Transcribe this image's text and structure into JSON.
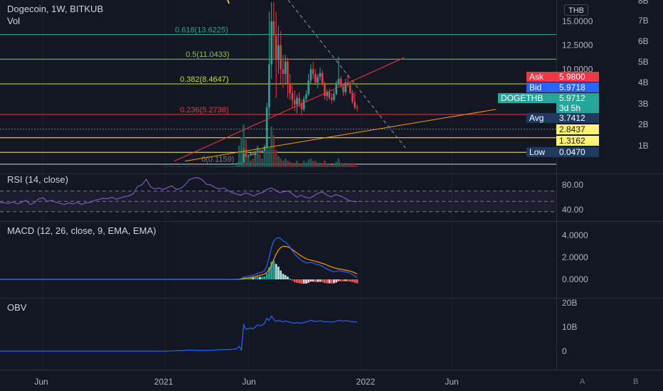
{
  "header": {
    "symbol": "Dogecoin, 1W, BITKUB",
    "volume_label": "Vol",
    "currency_button": "THB"
  },
  "indicators": {
    "rsi": {
      "label": "RSI (14, close)",
      "ticks": [
        "80.00",
        "40.00"
      ]
    },
    "macd": {
      "label": "MACD (12, 26, close, 9, EMA, EMA)",
      "ticks": [
        "4.0000",
        "2.0000",
        "0.0000"
      ]
    },
    "obv": {
      "label": "OBV",
      "ticks": [
        "20B",
        "10B",
        "0"
      ]
    }
  },
  "price_axis": {
    "ticks": [
      "15.0000",
      "12.5000",
      "10.0000"
    ],
    "volume_ticks": [
      "8B",
      "7B",
      "6B",
      "5B",
      "4B",
      "3B",
      "2B",
      "1B"
    ]
  },
  "tags": {
    "ask": {
      "label": "Ask",
      "value": "5.9800",
      "color": "#f23645"
    },
    "bid": {
      "label": "Bid",
      "value": "5.9718",
      "color": "#2962ff"
    },
    "last": {
      "label": "DOGETHB",
      "value": "5.9712",
      "countdown": "3d 5h",
      "color": "#26a69a"
    },
    "avg": {
      "label": "Avg",
      "value": "3.7412",
      "color": "#1e3a5f"
    },
    "level1": {
      "value": "2.8437",
      "color": "#fff176"
    },
    "level2": {
      "value": "1.3162",
      "color": "#fff176"
    },
    "low": {
      "label": "Low",
      "value": "0.0470",
      "color": "#1e3a5f"
    }
  },
  "fib_labels": [
    "0.618(13.6225)",
    "0.5(11.0433)",
    "0.382(8.4647)",
    "0.236(5.2738)",
    "0(0.1159)"
  ],
  "time_axis": [
    "Jun",
    "2021",
    "Jun",
    "2022",
    "Jun"
  ],
  "axis_buttons": [
    "A",
    "B"
  ],
  "chart_data": {
    "type": "candlestick",
    "title": "Dogecoin, 1W, BITKUB",
    "period": "1W",
    "price_ylim": [
      0,
      17
    ],
    "weekly_candles": [
      [
        0.08,
        0.08,
        0.07,
        0.08
      ],
      [
        0.08,
        0.08,
        0.07,
        0.08
      ],
      [
        0.08,
        0.09,
        0.08,
        0.08
      ],
      [
        0.08,
        0.09,
        0.08,
        0.09
      ],
      [
        0.09,
        0.09,
        0.08,
        0.08
      ],
      [
        0.08,
        0.09,
        0.08,
        0.09
      ],
      [
        0.09,
        0.1,
        0.08,
        0.09
      ],
      [
        0.09,
        0.09,
        0.08,
        0.08
      ],
      [
        0.08,
        0.09,
        0.08,
        0.09
      ],
      [
        0.09,
        0.1,
        0.09,
        0.1
      ],
      [
        0.1,
        0.11,
        0.09,
        0.1
      ],
      [
        0.1,
        0.1,
        0.09,
        0.09
      ],
      [
        0.09,
        0.1,
        0.09,
        0.1
      ],
      [
        0.1,
        0.1,
        0.09,
        0.09
      ],
      [
        0.09,
        0.09,
        0.08,
        0.09
      ],
      [
        0.09,
        0.09,
        0.08,
        0.08
      ],
      [
        0.08,
        0.09,
        0.08,
        0.09
      ],
      [
        0.09,
        0.09,
        0.08,
        0.08
      ],
      [
        0.08,
        0.09,
        0.08,
        0.09
      ],
      [
        0.09,
        0.09,
        0.08,
        0.08
      ],
      [
        0.08,
        0.09,
        0.08,
        0.09
      ],
      [
        0.09,
        0.09,
        0.08,
        0.09
      ],
      [
        0.09,
        0.1,
        0.08,
        0.09
      ],
      [
        0.09,
        0.1,
        0.09,
        0.1
      ],
      [
        0.1,
        0.11,
        0.09,
        0.1
      ],
      [
        0.1,
        0.1,
        0.09,
        0.1
      ],
      [
        0.1,
        0.11,
        0.1,
        0.11
      ],
      [
        0.11,
        0.11,
        0.1,
        0.1
      ],
      [
        0.1,
        0.11,
        0.1,
        0.11
      ],
      [
        0.11,
        0.12,
        0.1,
        0.11
      ],
      [
        0.11,
        0.12,
        0.11,
        0.12
      ],
      [
        0.12,
        0.15,
        0.11,
        0.14
      ],
      [
        0.14,
        0.25,
        0.13,
        0.2
      ],
      [
        0.2,
        0.3,
        0.15,
        0.25
      ],
      [
        0.25,
        1.8,
        0.24,
        1.2
      ],
      [
        1.2,
        1.6,
        0.8,
        0.9
      ],
      [
        0.9,
        1.1,
        0.8,
        1.0
      ],
      [
        1.0,
        1.3,
        0.9,
        1.2
      ],
      [
        1.2,
        1.4,
        0.95,
        1.05
      ],
      [
        1.05,
        1.5,
        1.0,
        1.4
      ],
      [
        1.4,
        1.8,
        1.3,
        1.5
      ],
      [
        1.5,
        1.7,
        1.2,
        1.3
      ],
      [
        1.3,
        1.6,
        1.2,
        1.5
      ],
      [
        1.5,
        2.1,
        1.4,
        1.9
      ],
      [
        1.9,
        6.5,
        1.8,
        6.0
      ],
      [
        6.0,
        16.0,
        5.0,
        10.5
      ],
      [
        10.5,
        17.0,
        9.0,
        15.0
      ],
      [
        15.0,
        17.0,
        11.0,
        13.5
      ],
      [
        13.5,
        16.0,
        7.0,
        11.0
      ],
      [
        11.0,
        14.5,
        9.5,
        12.5
      ],
      [
        12.5,
        14.0,
        8.5,
        10.0
      ],
      [
        10.0,
        11.5,
        8.0,
        9.5
      ],
      [
        9.5,
        11.5,
        8.5,
        10.8
      ],
      [
        10.8,
        11.2,
        7.0,
        8.5
      ],
      [
        8.5,
        9.5,
        6.8,
        7.5
      ],
      [
        7.5,
        8.3,
        6.0,
        6.8
      ],
      [
        6.8,
        7.8,
        5.6,
        6.3
      ],
      [
        6.3,
        7.3,
        5.4,
        7.0
      ],
      [
        7.0,
        7.6,
        6.0,
        6.4
      ],
      [
        6.4,
        6.8,
        5.3,
        5.8
      ],
      [
        5.8,
        7.2,
        5.6,
        6.9
      ],
      [
        6.9,
        7.8,
        6.6,
        7.4
      ],
      [
        7.4,
        9.5,
        7.2,
        8.8
      ],
      [
        8.8,
        10.5,
        8.5,
        10.0
      ],
      [
        10.0,
        10.8,
        9.0,
        9.5
      ],
      [
        9.5,
        10.0,
        8.3,
        8.6
      ],
      [
        8.6,
        9.5,
        8.0,
        9.2
      ],
      [
        9.2,
        10.2,
        8.8,
        9.6
      ],
      [
        9.6,
        9.9,
        8.2,
        8.4
      ],
      [
        8.4,
        8.7,
        6.8,
        7.2
      ],
      [
        7.2,
        7.9,
        6.7,
        7.6
      ],
      [
        7.6,
        8.0,
        6.8,
        7.0
      ],
      [
        7.0,
        7.5,
        6.4,
        6.8
      ],
      [
        6.8,
        7.8,
        6.6,
        7.4
      ],
      [
        7.4,
        8.8,
        7.3,
        8.4
      ],
      [
        8.4,
        11.3,
        8.2,
        9.0
      ],
      [
        9.0,
        9.3,
        8.0,
        8.2
      ],
      [
        8.2,
        8.5,
        7.2,
        7.6
      ],
      [
        7.6,
        9.0,
        7.3,
        8.6
      ],
      [
        8.6,
        9.5,
        8.1,
        8.3
      ],
      [
        8.3,
        8.6,
        7.4,
        7.5
      ],
      [
        7.5,
        7.8,
        6.4,
        6.6
      ],
      [
        6.6,
        7.6,
        5.8,
        6.0
      ],
      [
        6.0,
        6.3,
        5.6,
        5.97
      ]
    ],
    "volume": [
      0.02,
      0.02,
      0.02,
      0.03,
      0.02,
      0.02,
      0.03,
      0.02,
      0.02,
      0.03,
      0.03,
      0.02,
      0.02,
      0.02,
      0.02,
      0.02,
      0.02,
      0.02,
      0.02,
      0.02,
      0.02,
      0.02,
      0.03,
      0.03,
      0.04,
      0.03,
      0.04,
      0.03,
      0.04,
      0.04,
      0.05,
      0.2,
      1.0,
      1.4,
      2.0,
      1.3,
      0.5,
      0.3,
      0.4,
      0.6,
      1.0,
      0.6,
      0.4,
      0.8,
      2.0,
      0.9,
      1.9,
      1.5,
      0.8,
      0.5,
      0.4,
      0.3,
      0.4,
      0.3,
      0.25,
      0.2,
      0.2,
      0.3,
      0.2,
      0.15,
      0.3,
      0.2,
      0.35,
      0.4,
      0.3,
      0.3,
      0.2,
      0.2,
      0.2,
      0.3,
      0.15,
      0.15,
      0.1,
      0.15,
      0.25,
      0.4,
      0.2,
      0.15,
      0.2,
      0.15,
      0.15,
      0.2,
      0.15,
      0.05
    ],
    "volume_unit": "B",
    "fibonacci": [
      {
        "level": 0.618,
        "price": 13.6225
      },
      {
        "level": 0.5,
        "price": 11.0433
      },
      {
        "level": 0.382,
        "price": 8.4647
      },
      {
        "level": 0.236,
        "price": 5.2738
      },
      {
        "level": 0,
        "price": 0.1159
      }
    ],
    "rsi": {
      "ylim": [
        20,
        100
      ],
      "bands": [
        70,
        50,
        30
      ],
      "values": [
        48,
        47,
        46,
        49,
        45,
        48,
        52,
        44,
        47,
        55,
        57,
        50,
        52,
        48,
        46,
        44,
        47,
        45,
        48,
        44,
        47,
        48,
        52,
        54,
        56,
        55,
        58,
        54,
        57,
        59,
        61,
        65,
        79,
        82,
        93,
        78,
        74,
        76,
        73,
        77,
        80,
        73,
        75,
        82,
        92,
        95,
        96,
        92,
        83,
        82,
        77,
        74,
        76,
        71,
        67,
        64,
        62,
        66,
        64,
        60,
        65,
        67,
        73,
        76,
        72,
        67,
        69,
        70,
        64,
        58,
        62,
        58,
        56,
        61,
        66,
        68,
        62,
        59,
        63,
        61,
        57,
        52,
        50,
        49
      ]
    },
    "macd": {
      "ylim": [
        -1,
        4.5
      ],
      "macd": [
        0,
        0,
        0,
        0,
        0,
        0,
        0,
        0,
        0,
        0,
        0,
        0,
        0,
        0,
        0,
        0,
        0,
        0,
        0,
        0,
        0,
        0,
        0,
        0,
        0,
        0,
        0,
        0,
        0,
        0,
        0,
        0.01,
        0.04,
        0.08,
        0.2,
        0.25,
        0.3,
        0.35,
        0.38,
        0.45,
        0.55,
        0.6,
        0.66,
        0.78,
        1.2,
        2.0,
        2.9,
        3.5,
        3.7,
        3.8,
        3.7,
        3.5,
        3.4,
        3.2,
        2.9,
        2.6,
        2.3,
        2.1,
        1.9,
        1.7,
        1.6,
        1.5,
        1.5,
        1.55,
        1.5,
        1.4,
        1.35,
        1.3,
        1.2,
        1.05,
        0.95,
        0.85,
        0.75,
        0.7,
        0.72,
        0.8,
        0.75,
        0.7,
        0.68,
        0.63,
        0.55,
        0.45,
        0.3,
        0.15
      ],
      "signal": [
        0,
        0,
        0,
        0,
        0,
        0,
        0,
        0,
        0,
        0,
        0,
        0,
        0,
        0,
        0,
        0,
        0,
        0,
        0,
        0,
        0,
        0,
        0,
        0,
        0,
        0,
        0,
        0,
        0,
        0,
        0,
        0,
        0.01,
        0.02,
        0.06,
        0.1,
        0.14,
        0.18,
        0.22,
        0.26,
        0.32,
        0.37,
        0.42,
        0.5,
        0.65,
        0.9,
        1.3,
        1.8,
        2.3,
        2.65,
        2.9,
        3.0,
        3.0,
        2.95,
        2.85,
        2.7,
        2.55,
        2.4,
        2.25,
        2.1,
        1.98,
        1.88,
        1.8,
        1.75,
        1.7,
        1.64,
        1.58,
        1.52,
        1.45,
        1.38,
        1.3,
        1.2,
        1.12,
        1.05,
        1.0,
        0.96,
        0.92,
        0.88,
        0.84,
        0.8,
        0.75,
        0.68,
        0.6,
        0.5
      ]
    },
    "obv": {
      "ylim": [
        -3,
        21
      ],
      "unit": "B",
      "values": [
        0,
        0,
        0.1,
        0.2,
        0.1,
        0.2,
        0.3,
        0.2,
        0.3,
        0.4,
        0.5,
        0.4,
        0.5,
        0.4,
        0.4,
        0.3,
        0.4,
        0.3,
        0.4,
        0.3,
        0.4,
        0.4,
        0.5,
        0.6,
        0.7,
        0.6,
        0.7,
        0.6,
        0.7,
        0.8,
        0.9,
        1.1,
        2.0,
        0.5,
        11.0,
        9.0,
        9.3,
        9.6,
        9.2,
        10.0,
        11.0,
        10.4,
        10.8,
        11.6,
        13.6,
        12.7,
        14.6,
        13.1,
        12.3,
        12.8,
        12.4,
        12.1,
        12.5,
        12.2,
        11.9,
        11.7,
        11.6,
        11.9,
        11.7,
        11.6,
        11.9,
        12.1,
        12.4,
        12.8,
        12.5,
        12.2,
        12.4,
        12.6,
        12.4,
        12.1,
        12.3,
        12.1,
        12.0,
        12.2,
        12.4,
        12.8,
        12.6,
        12.4,
        12.6,
        12.5,
        12.3,
        12.2,
        12.1,
        12.1
      ]
    },
    "time_ticks": [
      "Jun",
      "2021",
      "Jun",
      "2022",
      "Jun"
    ],
    "trendlines": [
      {
        "name": "red",
        "color": "#f23645"
      },
      {
        "name": "orange",
        "color": "#ff9800"
      },
      {
        "name": "dashed-descending",
        "color": "#787b86"
      }
    ],
    "grid": true
  }
}
